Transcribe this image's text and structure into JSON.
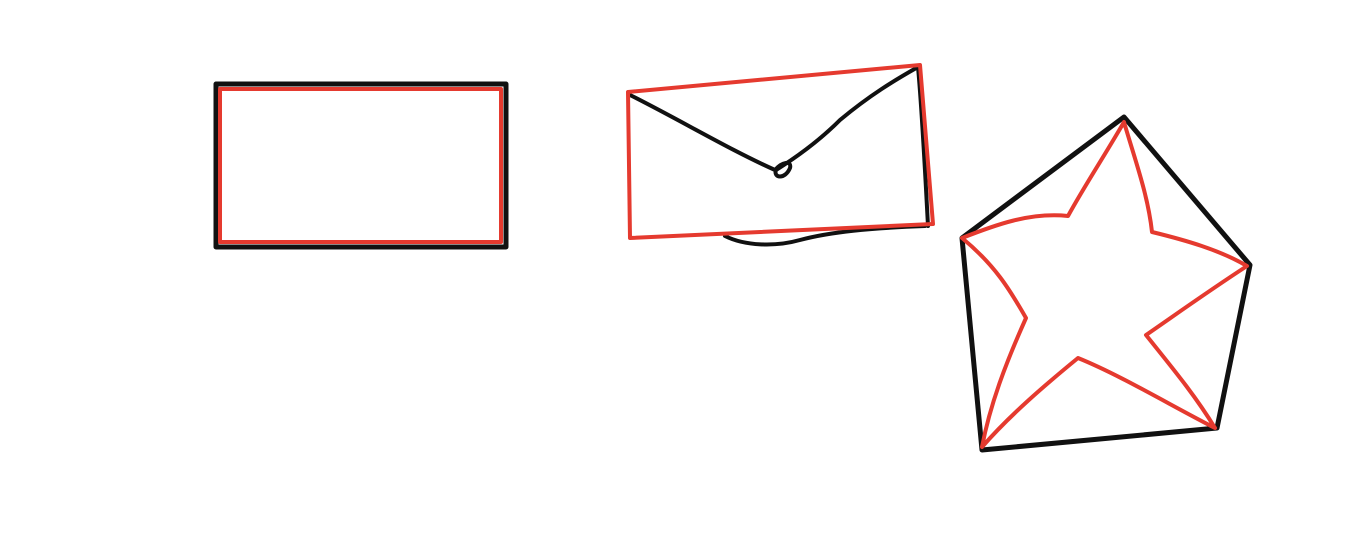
{
  "colors": {
    "background": "#ffffff",
    "ink": "#111111",
    "highlight": "#e53a2f"
  },
  "shapes": [
    {
      "kind": "rectangle",
      "outline": "black",
      "overlay": "red-rectangle"
    },
    {
      "kind": "envelope",
      "outline": "black",
      "overlay": "red-tilted-rectangle"
    },
    {
      "kind": "star-in-pentagon",
      "outline": "black-pentagon",
      "overlay": "red-star"
    }
  ]
}
